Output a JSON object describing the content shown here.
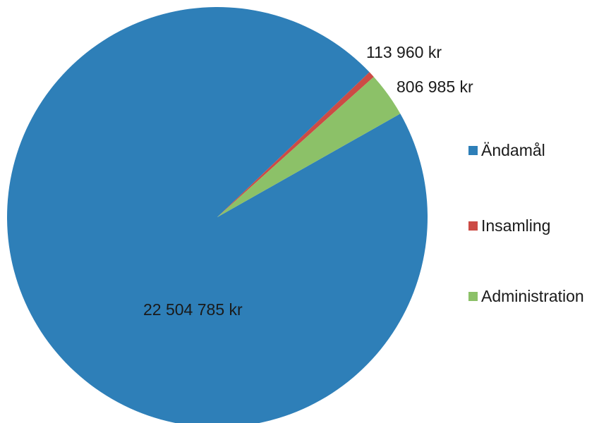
{
  "chart_data": {
    "type": "pie",
    "title": "",
    "categories": [
      "Ändamål",
      "Insamling",
      "Administration"
    ],
    "values": [
      22504785,
      113960,
      806985
    ],
    "value_labels": [
      "22 504 785 kr",
      "113 960 kr",
      "806 985 kr"
    ],
    "colors": [
      "#2e7fb8",
      "#cc4b45",
      "#8cc168"
    ],
    "legend": "right"
  }
}
